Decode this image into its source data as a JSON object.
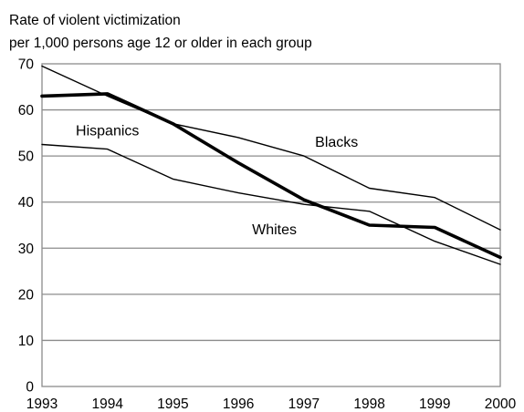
{
  "chart_data": {
    "type": "line",
    "title_lines": [
      "Rate of violent victimization",
      "per 1,000 persons age 12 or older in each group"
    ],
    "x": [
      1993,
      1994,
      1995,
      1996,
      1997,
      1998,
      1999,
      2000
    ],
    "x_tick_labels": [
      "1993",
      "1994",
      "1995",
      "1996",
      "1997",
      "1998",
      "1999",
      "2000"
    ],
    "y_tick_labels": [
      "0",
      "10",
      "20",
      "30",
      "40",
      "50",
      "60",
      "70"
    ],
    "ylim": [
      0,
      70
    ],
    "xlim": [
      1993,
      2000
    ],
    "grid": "horizontal",
    "series": [
      {
        "name": "Whites",
        "emphasis": "bold",
        "values": [
          63,
          63.5,
          57,
          48.5,
          40.5,
          35,
          34.5,
          28
        ]
      },
      {
        "name": "Blacks",
        "emphasis": "normal",
        "values": [
          69.5,
          63,
          57,
          54,
          50,
          43,
          41,
          34
        ]
      },
      {
        "name": "Hispanics",
        "emphasis": "normal",
        "values": [
          52.5,
          51.5,
          45,
          42,
          39.5,
          38,
          31.5,
          26.5
        ]
      }
    ]
  }
}
